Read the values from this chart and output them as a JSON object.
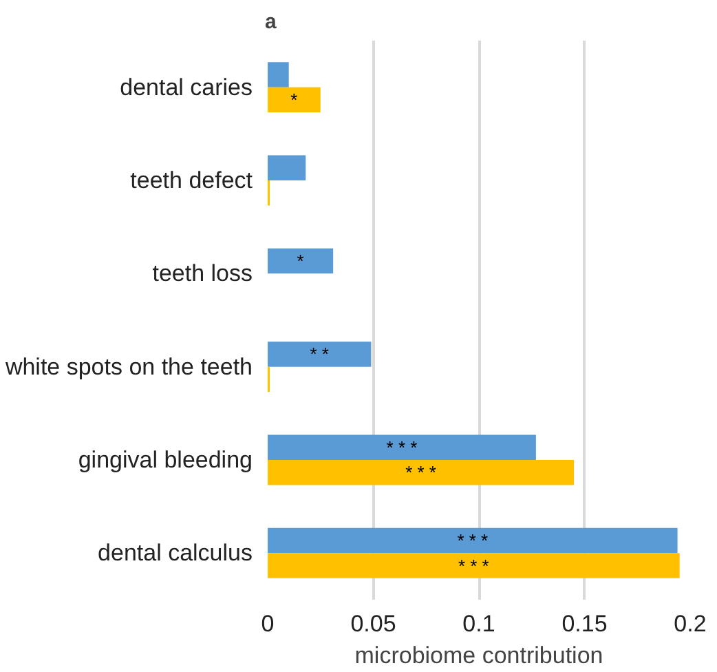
{
  "chart_data": {
    "type": "bar",
    "orientation": "horizontal",
    "categories": [
      "dental caries",
      "teeth defect",
      "teeth loss",
      "white spots on the teeth",
      "gingival bleeding",
      "dental calculus"
    ],
    "series": [
      {
        "color": "#5b9bd5",
        "values": [
          0.01,
          0.018,
          0.031,
          0.049,
          0.127,
          0.194
        ],
        "value_labels": [
          null,
          null,
          "*",
          "* *",
          "* * *",
          "* * *"
        ]
      },
      {
        "color": "#ffc000",
        "values": [
          0.025,
          0.001,
          0,
          0.001,
          0.145,
          0.195
        ],
        "value_labels": [
          "*",
          null,
          null,
          null,
          "* * *",
          "* * *"
        ]
      }
    ],
    "xlim": [
      0,
      0.2
    ],
    "xticks": [
      0,
      0.05,
      0.1,
      0.15,
      0.2
    ],
    "xlabel": "microbiome contribution",
    "grid": "x",
    "annotations": [
      "a"
    ]
  }
}
